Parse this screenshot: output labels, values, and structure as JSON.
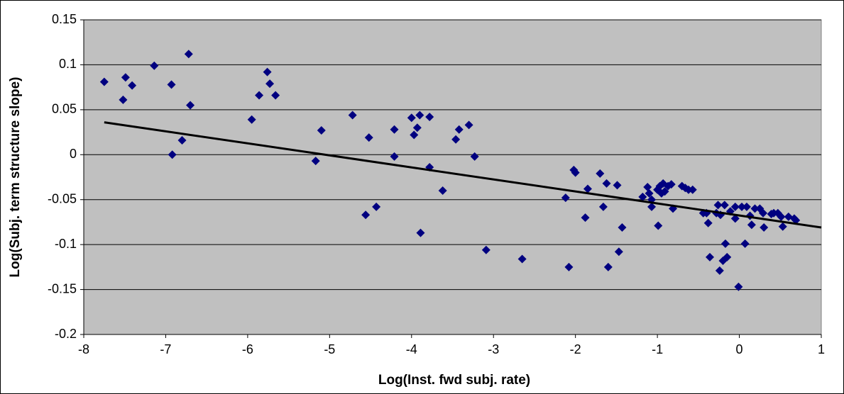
{
  "chart_data": {
    "type": "scatter",
    "xlabel": "Log(Inst. fwd  subj. rate)",
    "ylabel": "Log(Subj. term structure slope)",
    "xlim": [
      -8,
      1
    ],
    "xticks": [
      -8,
      -7,
      -6,
      -5,
      -4,
      -3,
      -2,
      -1,
      0,
      1
    ],
    "ylim": [
      -0.2,
      0.15
    ],
    "yticks": [
      0.15,
      0.1,
      0.05,
      0,
      -0.05,
      -0.1,
      -0.15,
      -0.2
    ],
    "grid": true,
    "background": "#c0c0c0",
    "series": [
      {
        "color": "#000080",
        "x": [
          -7.75,
          -7.52,
          -7.49,
          -7.41,
          -7.14,
          -6.93,
          -6.92,
          -6.8,
          -6.72,
          -6.7,
          -5.95,
          -5.86,
          -5.76,
          -5.73,
          -5.66,
          -5.17,
          -5.1,
          -4.72,
          -4.56,
          -4.52,
          -4.43,
          -4.21,
          -4.21,
          -4.0,
          -3.97,
          -3.93,
          -3.9,
          -3.89,
          -3.78,
          -3.78,
          -3.62,
          -3.46,
          -3.42,
          -3.3,
          -3.23,
          -3.09,
          -2.65,
          -2.12,
          -2.08,
          -2.02,
          -2.0,
          -1.88,
          -1.85,
          -1.7,
          -1.66,
          -1.62,
          -1.6,
          -1.49,
          -1.47,
          -1.43,
          -1.18,
          -1.12,
          -1.1,
          -1.07,
          -1.07,
          -1.0,
          -0.99,
          -0.97,
          -0.95,
          -0.93,
          -0.91,
          -0.87,
          -0.83,
          -0.81,
          -0.7,
          -0.66,
          -0.62,
          -0.57,
          -0.44,
          -0.4,
          -0.38,
          -0.36,
          -0.28,
          -0.26,
          -0.24,
          -0.23,
          -0.2,
          -0.18,
          -0.17,
          -0.15,
          -0.11,
          -0.05,
          -0.05,
          -0.01,
          0.03,
          0.07,
          0.09,
          0.13,
          0.15,
          0.19,
          0.25,
          0.29,
          0.3,
          0.39,
          0.42,
          0.47,
          0.51,
          0.53,
          0.6,
          0.67,
          0.69
        ],
        "values": [
          0.081,
          0.061,
          0.086,
          0.077,
          0.099,
          0.078,
          0,
          0.016,
          0.112,
          0.055,
          0.039,
          0.066,
          0.092,
          0.079,
          0.066,
          -0.007,
          0.027,
          0.044,
          -0.067,
          0.019,
          -0.058,
          0.028,
          -0.002,
          0.041,
          0.022,
          0.03,
          0.044,
          -0.087,
          0.042,
          -0.014,
          -0.04,
          0.017,
          0.028,
          0.033,
          -0.002,
          -0.106,
          -0.116,
          -0.048,
          -0.125,
          -0.017,
          -0.02,
          -0.07,
          -0.038,
          -0.021,
          -0.058,
          -0.032,
          -0.125,
          -0.034,
          -0.108,
          -0.081,
          -0.047,
          -0.036,
          -0.043,
          -0.05,
          -0.058,
          -0.039,
          -0.079,
          -0.035,
          -0.043,
          -0.032,
          -0.041,
          -0.035,
          -0.033,
          -0.06,
          -0.035,
          -0.037,
          -0.039,
          -0.039,
          -0.065,
          -0.065,
          -0.076,
          -0.114,
          -0.065,
          -0.056,
          -0.129,
          -0.067,
          -0.118,
          -0.056,
          -0.099,
          -0.114,
          -0.063,
          -0.071,
          -0.058,
          -0.147,
          -0.058,
          -0.099,
          -0.058,
          -0.068,
          -0.078,
          -0.06,
          -0.06,
          -0.065,
          -0.081,
          -0.066,
          -0.065,
          -0.065,
          -0.069,
          -0.08,
          -0.069,
          -0.071,
          -0.073
        ]
      }
    ],
    "trendline": {
      "color": "#000000",
      "x": [
        -7.75,
        1
      ],
      "values": [
        0.036,
        -0.081
      ]
    }
  }
}
